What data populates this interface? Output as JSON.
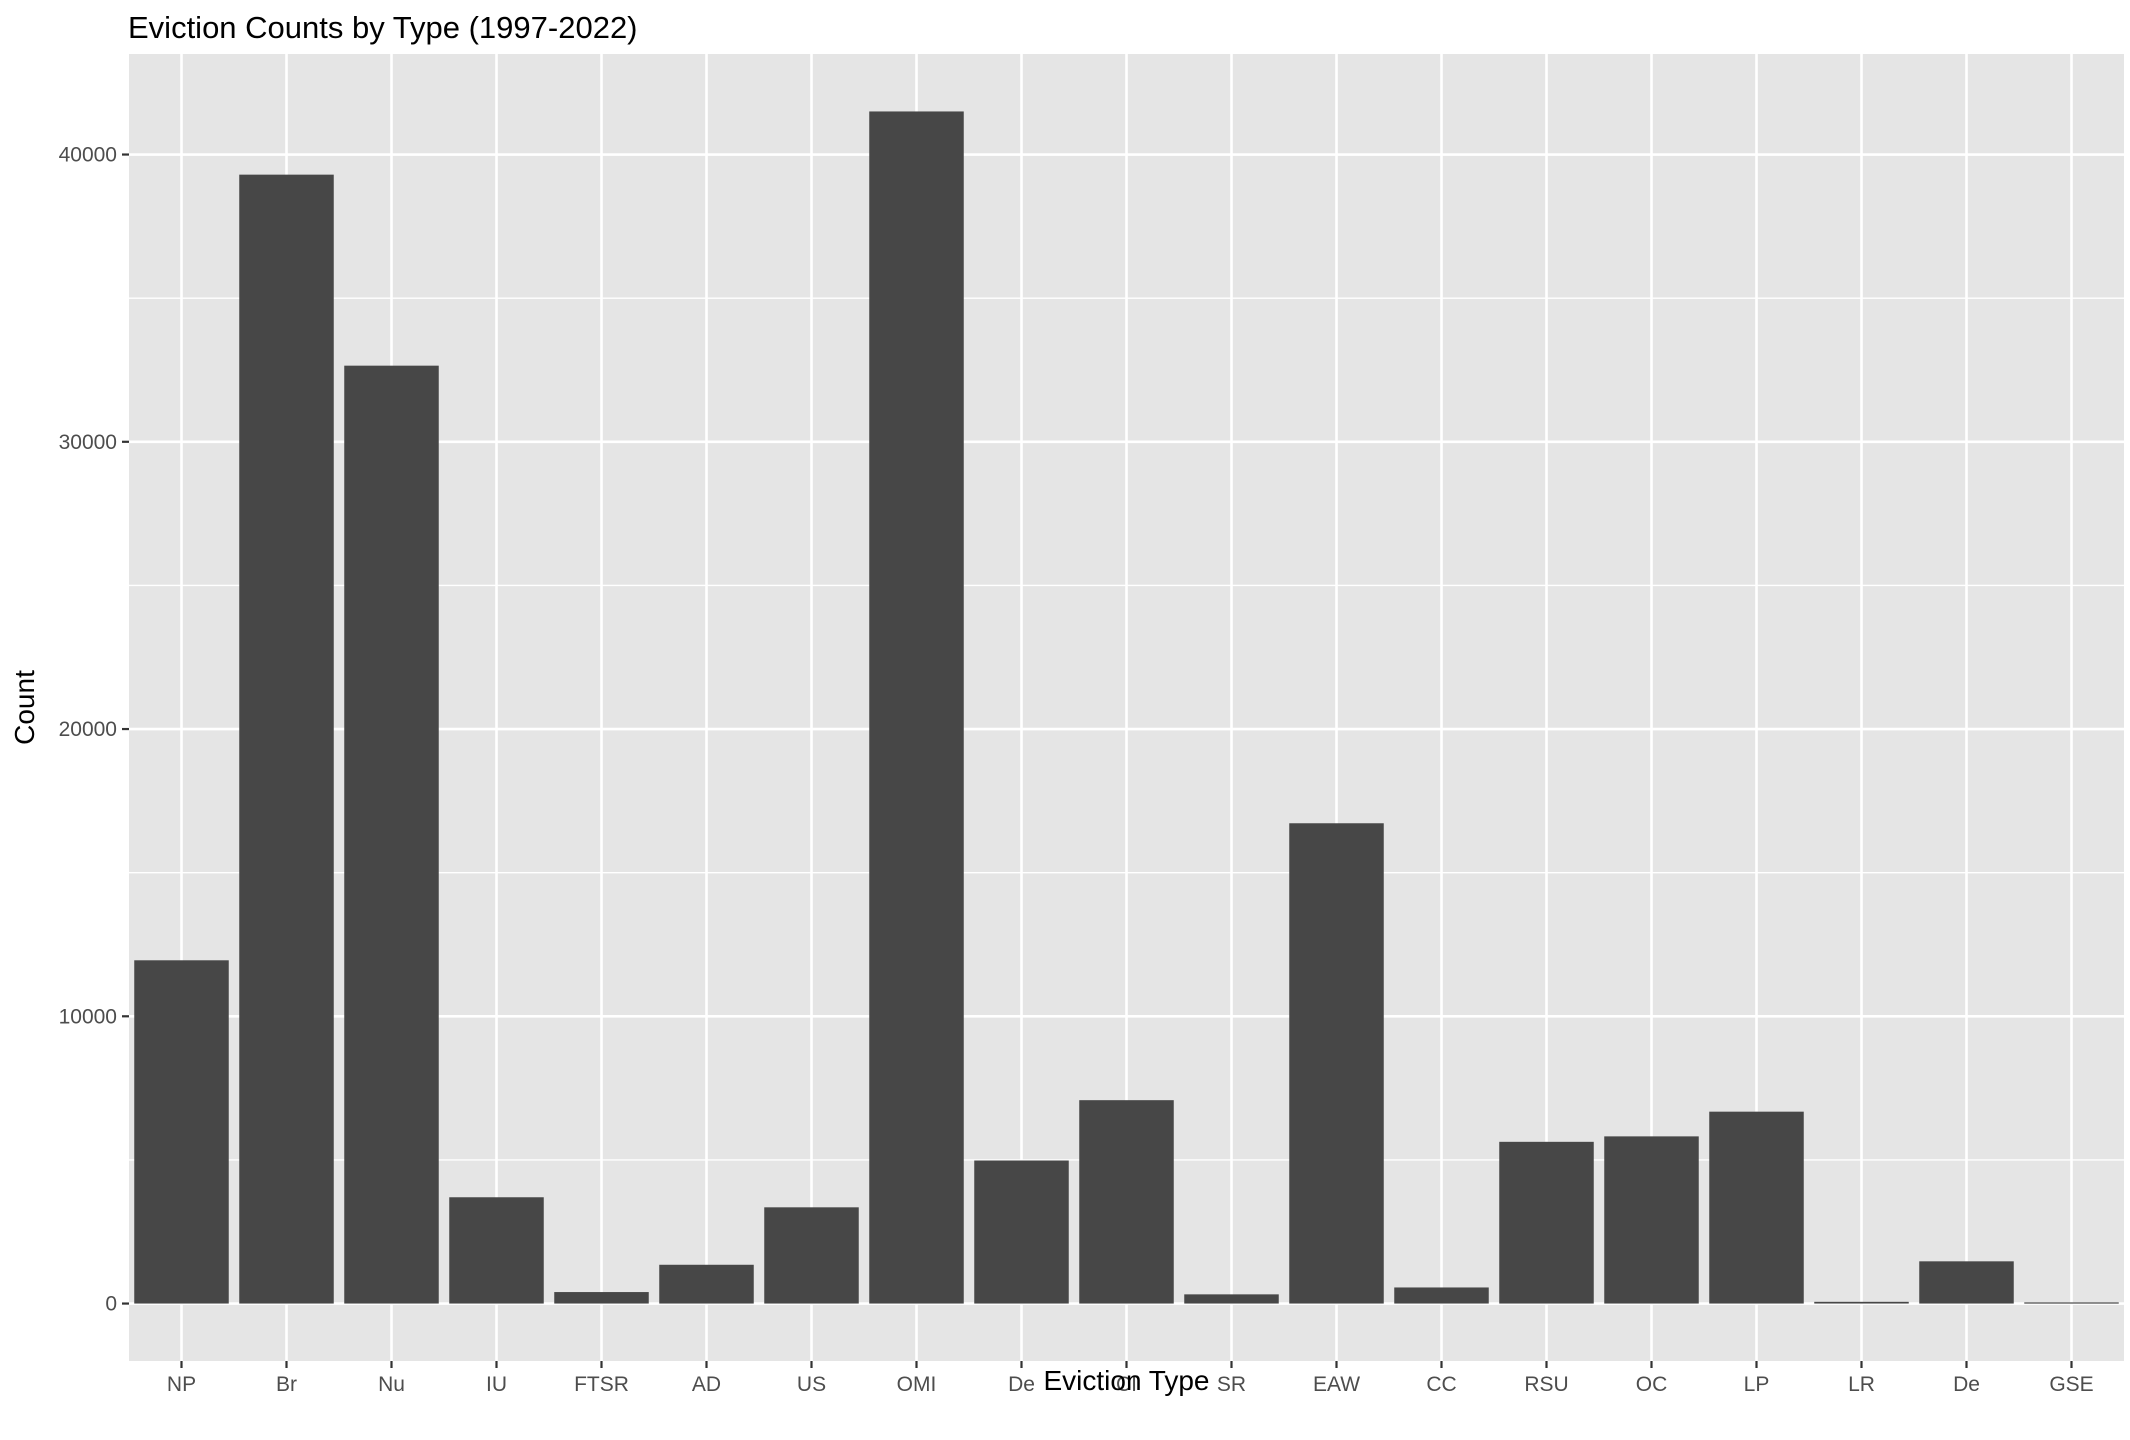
{
  "chart_data": {
    "type": "bar",
    "title": "Eviction Counts by Type (1997-2022)",
    "xlabel": "Eviction Type",
    "ylabel": "Count",
    "categories": [
      "NP",
      "Br",
      "Nu",
      "IU",
      "FTSR",
      "AD",
      "US",
      "OMI",
      "De",
      "CI",
      "SR",
      "EAW",
      "CC",
      "RSU",
      "OC",
      "LP",
      "LR",
      "De",
      "GSE"
    ],
    "values": [
      11950,
      39300,
      32650,
      3700,
      400,
      1350,
      3350,
      41500,
      4980,
      7080,
      320,
      16720,
      560,
      5630,
      5820,
      6680,
      60,
      1470,
      40
    ],
    "ylim": [
      -2000,
      43500
    ],
    "yticks": [
      0,
      10000,
      20000,
      30000,
      40000
    ],
    "grid": true,
    "legend": "none",
    "colors": {
      "panel": "#e5e5e5",
      "bar": "#474747",
      "grid": "#ffffff"
    }
  }
}
